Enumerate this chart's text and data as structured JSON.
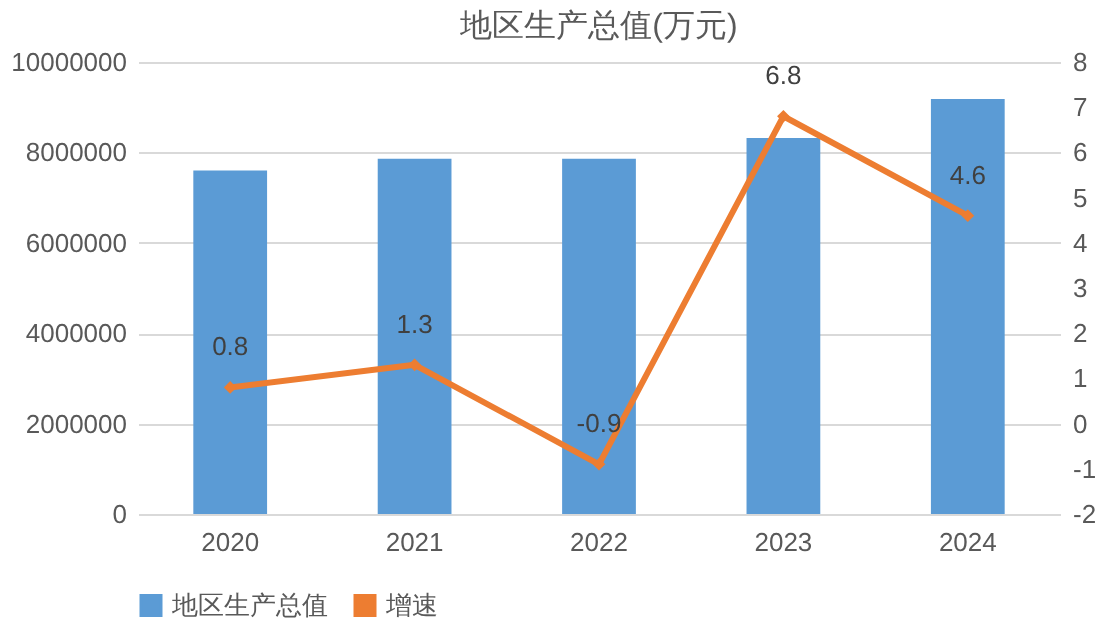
{
  "chart_data": {
    "type": "bar",
    "title": "地区生产总值(万元)",
    "categories": [
      "2020",
      "2021",
      "2022",
      "2023",
      "2024"
    ],
    "series": [
      {
        "name": "地区生产总值",
        "color": "#5b9bd5",
        "values": [
          7600000,
          7860000,
          7860000,
          8320000,
          9180000
        ]
      },
      {
        "name": "增速",
        "type": "line",
        "axis": "y2",
        "color": "#ed7d31",
        "values": [
          0.8,
          1.3,
          -0.9,
          6.8,
          4.6
        ],
        "data_labels": true
      }
    ],
    "ylim": [
      0,
      10000000
    ],
    "yticks": [
      0,
      2000000,
      4000000,
      6000000,
      8000000,
      10000000
    ],
    "y2lim": [
      -2,
      8
    ],
    "y2ticks": [
      -2,
      -1,
      0,
      1,
      2,
      3,
      4,
      5,
      6,
      7,
      8
    ],
    "grid": "y",
    "legend": "bottom",
    "marker": "diamond",
    "line_style": "solid"
  }
}
